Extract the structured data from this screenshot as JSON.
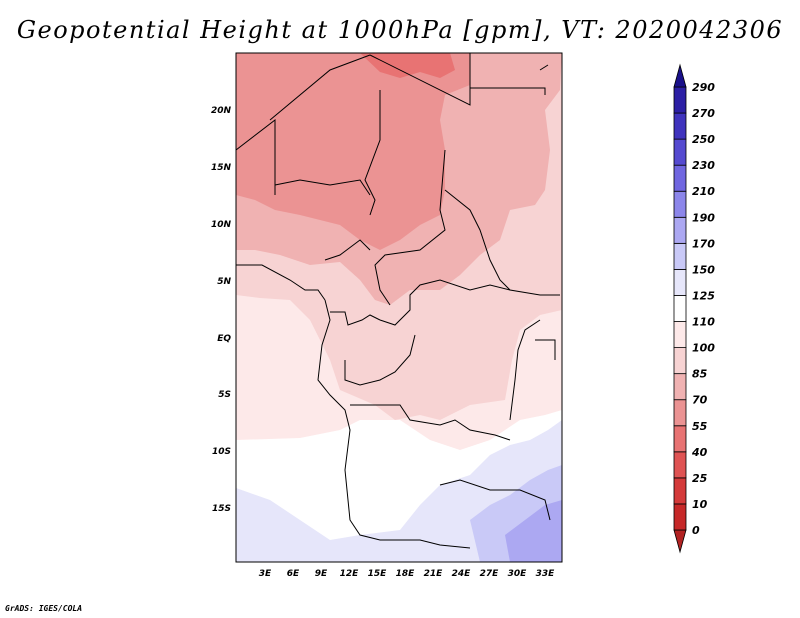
{
  "title": "Geopotential Height at 1000hPa [gpm], VT: 2020042306",
  "map": {
    "variable": "Geopotential Height",
    "level": "1000hPa",
    "units": "gpm",
    "valid_time": "2020042306",
    "lat_ticks": [
      "20N",
      "15N",
      "10N",
      "5N",
      "EQ",
      "5S",
      "10S",
      "15S"
    ],
    "lon_ticks": [
      "3E",
      "6E",
      "9E",
      "12E",
      "15E",
      "18E",
      "21E",
      "24E",
      "27E",
      "30E",
      "33E"
    ]
  },
  "colorbar": {
    "levels": [
      "0",
      "10",
      "25",
      "40",
      "55",
      "70",
      "85",
      "100",
      "110",
      "125",
      "150",
      "170",
      "190",
      "210",
      "230",
      "250",
      "270",
      "290"
    ],
    "colors": [
      "#b22222",
      "#c62828",
      "#d43a3a",
      "#df5353",
      "#e87373",
      "#eb9393",
      "#f0b2b2",
      "#f7d3d3",
      "#fde9e9",
      "#ffffff",
      "#e6e6fa",
      "#c9c9f7",
      "#aca8f2",
      "#8c86ea",
      "#7066e0",
      "#554ad0",
      "#3f33bd",
      "#2c1fa5",
      "#1a108a"
    ]
  },
  "credit": "GrADS: IGES/COLA"
}
